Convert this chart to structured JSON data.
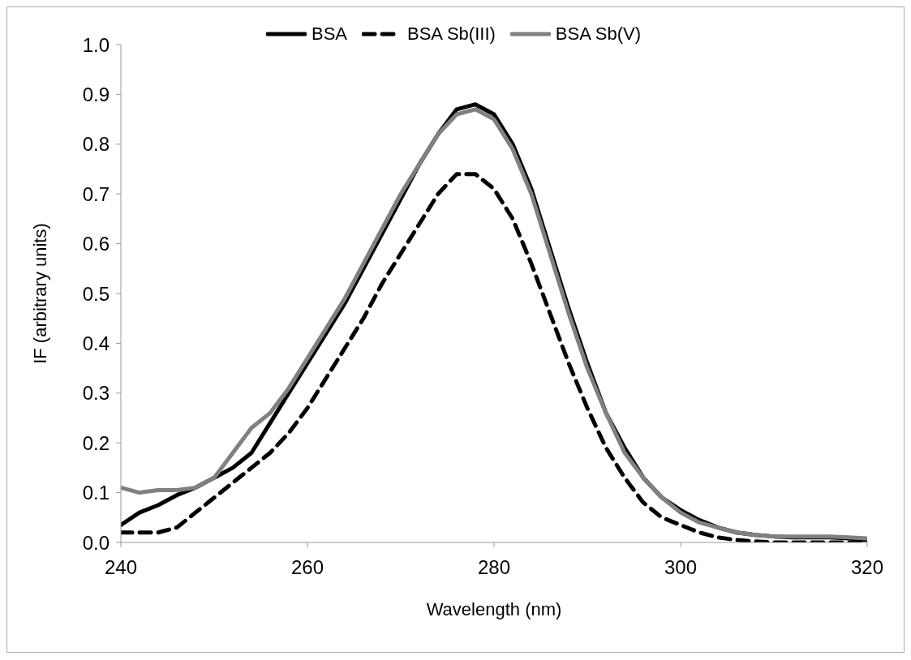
{
  "chart_data": {
    "type": "line",
    "xlabel": "Wavelength (nm)",
    "ylabel": "IF (arbitrary units)",
    "x": [
      240,
      242,
      244,
      246,
      248,
      250,
      252,
      254,
      256,
      258,
      260,
      262,
      264,
      266,
      268,
      270,
      272,
      274,
      276,
      278,
      280,
      282,
      284,
      286,
      288,
      290,
      292,
      294,
      296,
      298,
      300,
      302,
      304,
      306,
      308,
      310,
      312,
      314,
      316,
      318,
      320
    ],
    "series": [
      {
        "name": "BSA",
        "color": "#000000",
        "line_style": "solid",
        "values": [
          0.035,
          0.06,
          0.075,
          0.095,
          0.11,
          0.13,
          0.15,
          0.18,
          0.24,
          0.3,
          0.36,
          0.42,
          0.48,
          0.55,
          0.62,
          0.69,
          0.76,
          0.82,
          0.87,
          0.88,
          0.86,
          0.8,
          0.71,
          0.59,
          0.47,
          0.36,
          0.26,
          0.19,
          0.13,
          0.09,
          0.065,
          0.045,
          0.03,
          0.02,
          0.015,
          0.012,
          0.01,
          0.01,
          0.01,
          0.008,
          0.005
        ]
      },
      {
        "name": "BSA Sb(III)",
        "color": "#000000",
        "line_style": "dashed",
        "values": [
          0.02,
          0.02,
          0.02,
          0.03,
          0.06,
          0.09,
          0.12,
          0.15,
          0.18,
          0.22,
          0.27,
          0.33,
          0.39,
          0.45,
          0.52,
          0.58,
          0.64,
          0.7,
          0.74,
          0.74,
          0.71,
          0.65,
          0.56,
          0.46,
          0.36,
          0.27,
          0.19,
          0.13,
          0.08,
          0.05,
          0.035,
          0.02,
          0.01,
          0.005,
          0.002,
          0,
          0,
          0,
          0,
          0,
          0
        ]
      },
      {
        "name": "BSA Sb(V)",
        "color": "#808080",
        "line_style": "solid",
        "values": [
          0.11,
          0.1,
          0.105,
          0.105,
          0.11,
          0.13,
          0.18,
          0.23,
          0.26,
          0.31,
          0.37,
          0.43,
          0.49,
          0.56,
          0.63,
          0.7,
          0.76,
          0.82,
          0.86,
          0.87,
          0.85,
          0.79,
          0.7,
          0.58,
          0.46,
          0.35,
          0.26,
          0.18,
          0.13,
          0.09,
          0.06,
          0.04,
          0.03,
          0.02,
          0.015,
          0.012,
          0.012,
          0.012,
          0.012,
          0.01,
          0.008
        ]
      }
    ],
    "xlim": [
      240,
      320
    ],
    "xticks": [
      240,
      260,
      280,
      300,
      320
    ],
    "ylim": [
      0,
      1
    ],
    "yticks": [
      {
        "value": 0,
        "label": "0.0"
      },
      0.1,
      0.2,
      0.3,
      0.4,
      0.5,
      0.6,
      0.7,
      0.8,
      0.9,
      {
        "value": 1,
        "label": "1.0"
      }
    ],
    "grid": false,
    "legend": "top",
    "marker": "none"
  }
}
